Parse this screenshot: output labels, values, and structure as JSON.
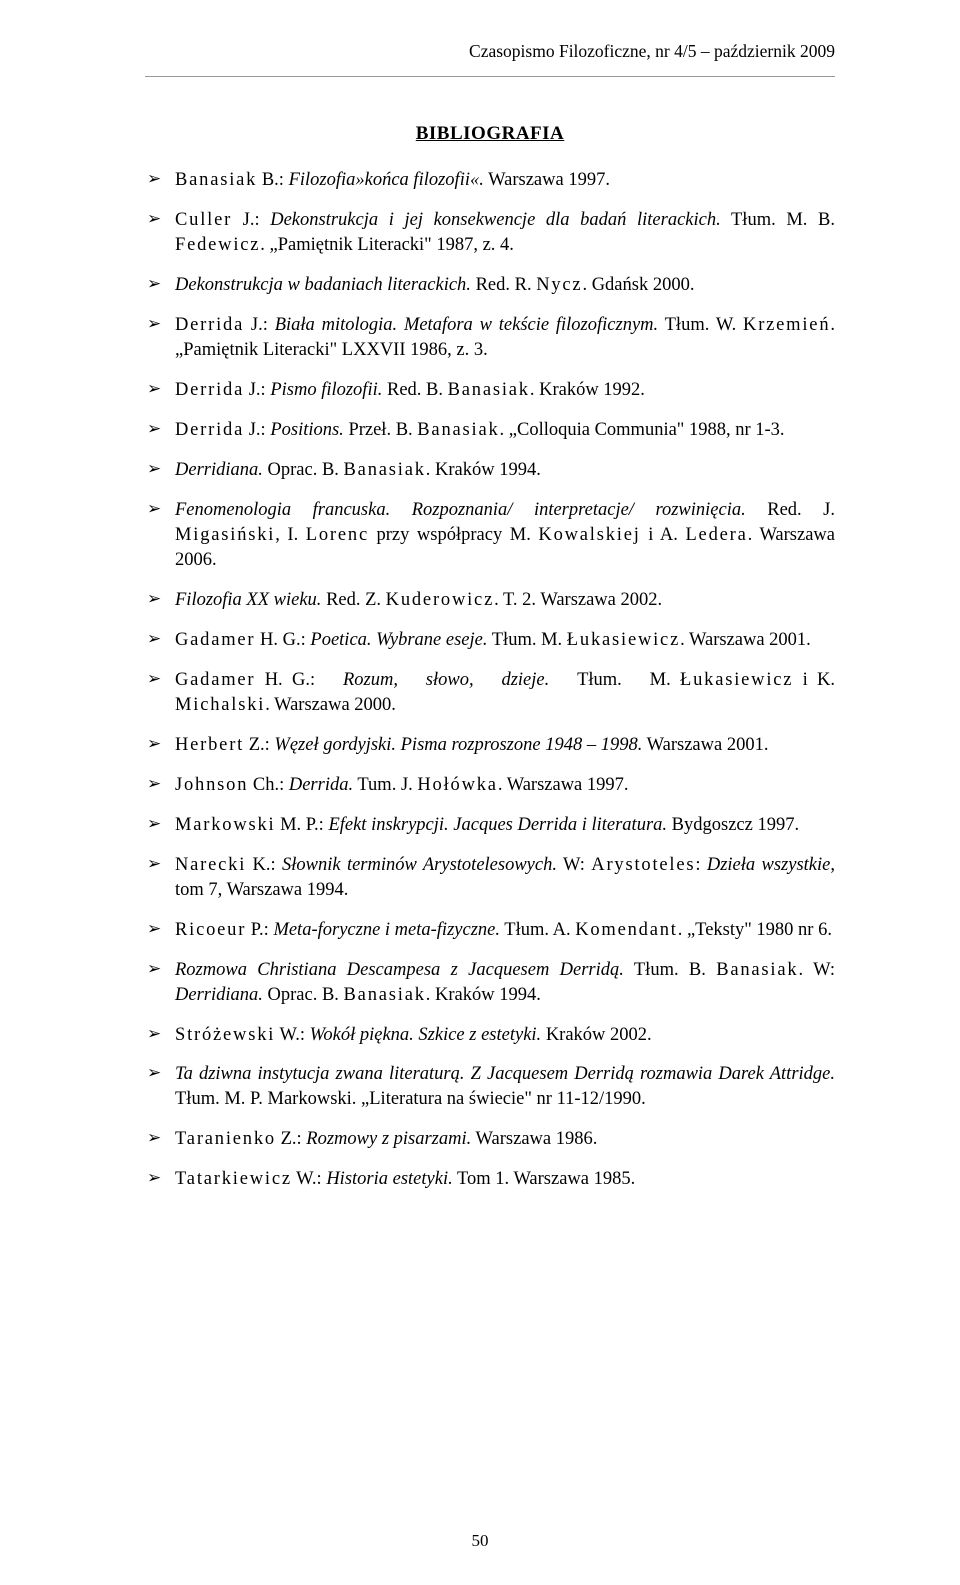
{
  "header": "Czasopismo Filozoficzne, nr 4/5 – październik 2009",
  "title": "BIBLIOGRAFIA",
  "items": [
    {
      "html": "<span class='spaced'>Banasiak</span> B.: <span class='italic'>Filozofia»końca filozofii«.</span> Warszawa 1997."
    },
    {
      "html": "<span class='spaced'>Culler</span> J.: <span class='italic'>Dekonstrukcja i jej konsekwencje dla badań literackich.</span> Tłum. M. B. <span class='spaced'>Fedewicz</span>. „Pamiętnik Literacki\" 1987, z. 4."
    },
    {
      "html": "<span class='italic'>Dekonstrukcja w badaniach literackich.</span> Red. R. <span class='spaced'>Nycz</span>. Gdańsk 2000."
    },
    {
      "html": "<span class='spaced'>Derrida</span> J.: <span class='italic'>Biała mitologia. Metafora w tekście filozoficznym.</span> Tłum. W. <span class='spaced'>Krzemień</span>. „Pamiętnik Literacki\" LXXVII 1986, z. 3."
    },
    {
      "html": "<span class='spaced'>Derrida</span> J.: <span class='italic'>Pismo filozofii.</span> Red. B. <span class='spaced'>Banasiak</span>. Kraków 1992."
    },
    {
      "html": "<span class='spaced'>Derrida</span> J.: <span class='italic'>Positions.</span> Przeł. B. <span class='spaced'>Banasiak</span>. „Colloquia Communia\" 1988, nr 1-3."
    },
    {
      "html": "<span class='italic'>Derridiana.</span> Oprac. B. <span class='spaced'>Banasiak</span>. Kraków 1994."
    },
    {
      "html": "<span class='italic'>Fenomenologia francuska. Rozpoznania/ interpretacje/ rozwinięcia.</span> Red. J. <span class='spaced'>Migasiński</span>, I. <span class='spaced'>Lorenc</span> przy współpracy M. <span class='spaced'>Kowalskiej</span> i A. <span class='spaced'>Ledera</span>. Warszawa 2006."
    },
    {
      "html": "<span class='italic'>Filozofia XX wieku.</span> Red. Z. <span class='spaced'>Kuderowicz</span>. T. 2. Warszawa 2002."
    },
    {
      "html": "<span class='spaced'>Gadamer</span> H. G.: <span class='italic'>Poetica. Wybrane eseje.</span> Tłum. M. <span class='spaced'>Łukasiewicz</span>. Warszawa 2001."
    },
    {
      "html": "<span class='spaced'>Gadamer</span> H. G.: &nbsp;&nbsp;<span class='italic'>Rozum, &nbsp;&nbsp;słowo, &nbsp;&nbsp;dzieje.</span> &nbsp;&nbsp;Tłum. &nbsp;&nbsp;M. <span class='spaced'>Łukasiewicz</span> i K. <span class='spaced'>Michalski</span>. Warszawa 2000."
    },
    {
      "html": "<span class='spaced'>Herbert</span> Z.: <span class='italic'>Węzeł gordyjski. Pisma rozproszone 1948 – 1998.</span> Warszawa 2001."
    },
    {
      "html": "<span class='spaced'>Johnson</span> Ch.: <span class='italic'>Derrida.</span> Tum. J. <span class='spaced'>Hołówka</span>. Warszawa 1997."
    },
    {
      "html": "<span class='spaced'>Markowski</span> M. P.: <span class='italic'>Efekt inskrypcji. Jacques Derrida i literatura.</span> Bydgoszcz 1997."
    },
    {
      "html": "<span class='spaced'>Narecki</span> K.: <span class='italic'>Słownik terminów Arystotelesowych.</span> W: <span class='spaced'>Arystoteles</span>: <span class='italic'>Dzieła wszystkie</span>, tom 7, Warszawa 1994."
    },
    {
      "html": "<span class='spaced'>Ricoeur</span> P.: <span class='italic'>Meta-foryczne i meta-fizyczne.</span> Tłum. A. <span class='spaced'>Komendant</span>. „Teksty\" 1980 nr 6."
    },
    {
      "html": "<span class='italic'>Rozmowa Christiana Descampesa z Jacquesem Derridą.</span> Tłum. B. <span class='spaced'>Banasiak</span>. W: <span class='italic'>Derridiana.</span> Oprac. B. <span class='spaced'>Banasiak</span>. Kraków 1994."
    },
    {
      "html": "<span class='spaced'>Stróżewski</span> W.: <span class='italic'>Wokół piękna. Szkice z estetyki.</span> Kraków 2002."
    },
    {
      "html": "<span class='italic'>Ta dziwna instytucja zwana literaturą. Z Jacquesem Derridą rozmawia Darek Attridge.</span> Tłum. M. P. Markowski. „Literatura na świecie\" nr 11-12/1990."
    },
    {
      "html": "<span class='spaced'>Taranienko</span> Z.: <span class='italic'>Rozmowy z pisarzami.</span> Warszawa 1986."
    },
    {
      "html": "<span class='spaced'>Tatarkiewicz</span> W.: <span class='italic'>Historia estetyki.</span> Tom 1. Warszawa 1985."
    }
  ],
  "page_number": "50"
}
